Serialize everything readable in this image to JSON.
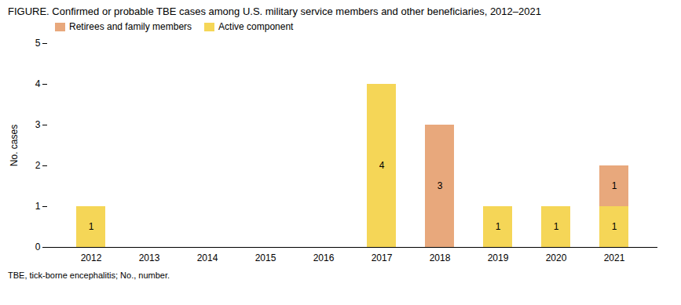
{
  "chart_data": {
    "type": "bar",
    "stacked": true,
    "title": "FIGURE. Confirmed or probable TBE cases among U.S. military service members and other beneficiaries, 2012–2021",
    "ylabel": "No. cases",
    "footnote": "TBE, tick-borne encephalitis; No., number.",
    "categories": [
      "2012",
      "2013",
      "2014",
      "2015",
      "2016",
      "2017",
      "2018",
      "2019",
      "2020",
      "2021"
    ],
    "series": [
      {
        "name": "Active component",
        "color": "#F5D657",
        "values": [
          1,
          0,
          0,
          0,
          0,
          4,
          0,
          1,
          1,
          1
        ]
      },
      {
        "name": "Retirees and family members",
        "color": "#E8A87C",
        "values": [
          0,
          0,
          0,
          0,
          0,
          0,
          3,
          0,
          0,
          1
        ]
      }
    ],
    "ylim": [
      0,
      5
    ],
    "yticks": [
      0,
      1,
      2,
      3,
      4,
      5
    ],
    "data_labels": true,
    "legend": "upper left",
    "grid": false
  }
}
